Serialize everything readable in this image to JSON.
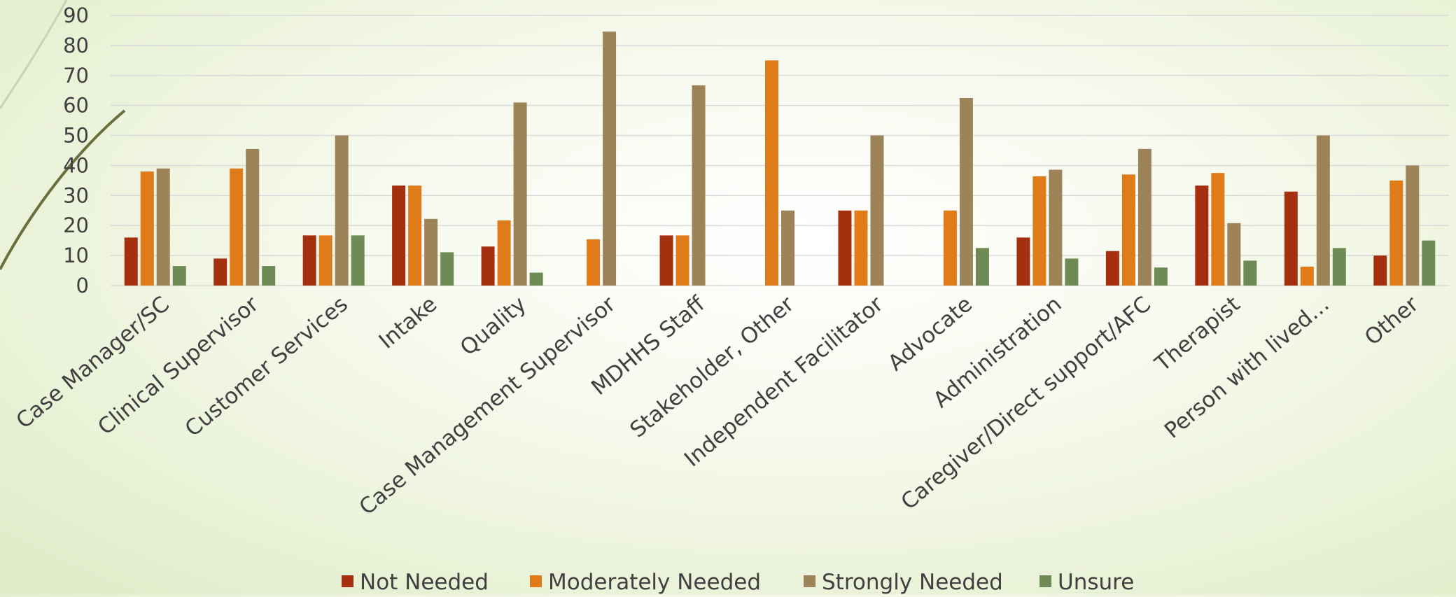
{
  "chart_data": {
    "type": "bar",
    "categories": [
      "Case Manager/SC",
      "Clinical Supervisor",
      "Customer Services",
      "Intake",
      "Quality",
      "Case Management Supervisor",
      "MDHHS Staff",
      "Stakeholder, Other",
      "Independent Facilitator",
      "Advocate",
      "Administration",
      "Caregiver/Direct support/AFC",
      "Therapist",
      "Person with lived…",
      "Other"
    ],
    "series": [
      {
        "name": "Not Needed",
        "color": "#a5300f",
        "values": [
          16,
          9,
          16.7,
          33.3,
          13,
          0,
          16.7,
          0,
          25,
          0,
          16,
          11.5,
          33.3,
          31.3,
          10
        ]
      },
      {
        "name": "Moderately Needed",
        "color": "#e07b1a",
        "values": [
          38,
          39,
          16.7,
          33.3,
          21.7,
          15.4,
          16.7,
          75,
          25,
          25,
          36.4,
          37,
          37.5,
          6.3,
          35
        ]
      },
      {
        "name": "Strongly Needed",
        "color": "#9d8458",
        "values": [
          39,
          45.5,
          50,
          22.2,
          61,
          84.6,
          66.7,
          25,
          50,
          62.5,
          38.6,
          45.5,
          20.8,
          50,
          40
        ]
      },
      {
        "name": "Unsure",
        "color": "#6f8b55",
        "values": [
          6.5,
          6.5,
          16.7,
          11.1,
          4.3,
          0,
          0,
          0,
          0,
          12.5,
          9,
          6,
          8.3,
          12.5,
          15
        ]
      }
    ],
    "yticks": [
      "0",
      "10",
      "20",
      "30",
      "40",
      "50",
      "60",
      "70",
      "80",
      "90"
    ],
    "ylim": [
      0,
      90
    ],
    "grid": true,
    "legend_position": "bottom",
    "title": "",
    "xlabel": "",
    "ylabel": ""
  }
}
